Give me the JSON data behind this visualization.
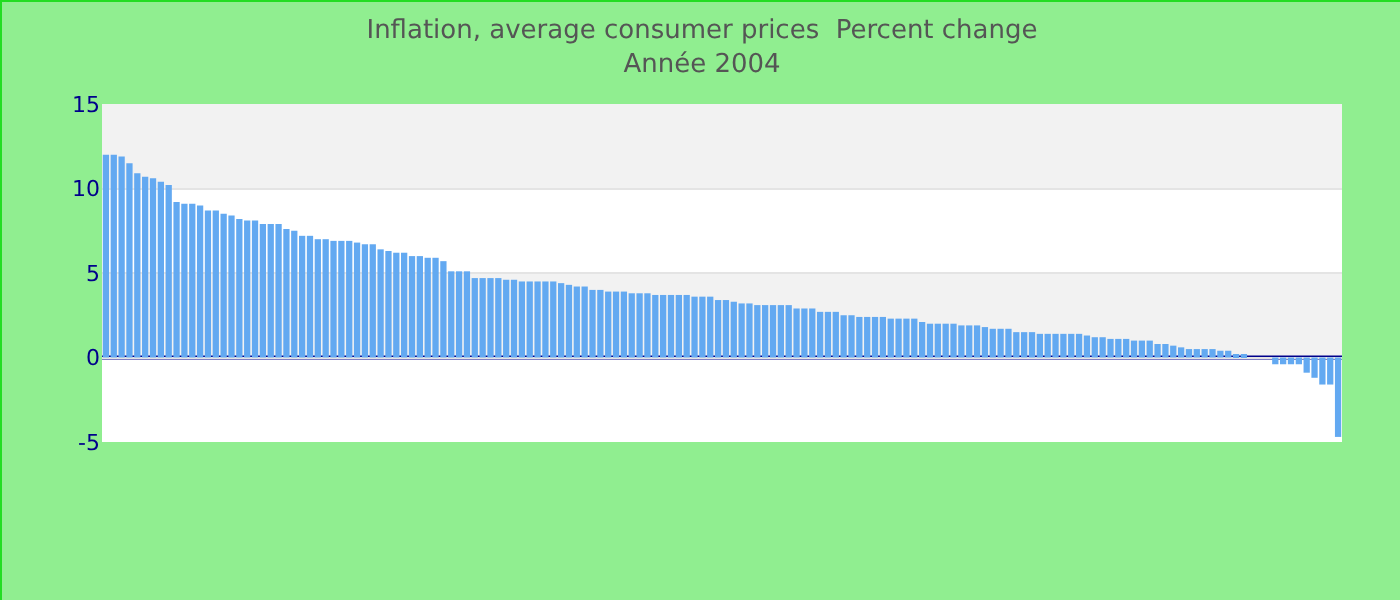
{
  "chart_data": {
    "type": "bar",
    "title": "Inflation, average consumer prices  Percent change",
    "subtitle": "Année 2004",
    "categories": [
      null,
      null,
      null,
      null,
      null,
      null,
      null,
      null,
      null,
      null,
      null,
      null,
      null,
      null,
      null,
      null,
      null,
      null,
      null,
      null,
      null,
      null,
      null,
      null,
      null,
      null,
      null,
      null,
      null,
      null,
      null,
      null,
      null,
      null,
      null,
      null,
      null,
      null,
      null,
      null,
      null,
      null,
      null,
      null,
      null,
      null,
      null,
      null,
      null,
      null,
      null,
      null,
      null,
      null,
      null,
      null,
      null,
      null,
      null,
      null,
      null,
      null,
      null,
      null,
      null,
      null,
      null,
      null,
      null,
      null,
      null,
      null,
      null,
      null,
      null,
      null,
      null,
      null,
      null,
      null,
      null,
      null,
      null,
      null,
      null,
      null,
      null,
      null,
      null,
      null,
      null,
      null,
      null,
      null,
      null,
      null,
      null,
      null,
      null,
      null,
      null,
      null,
      null,
      null,
      null,
      null,
      null,
      null,
      null,
      null,
      null,
      null,
      null,
      null,
      null,
      null,
      null,
      null,
      null,
      null,
      null,
      null,
      null,
      null,
      null,
      null,
      null,
      null,
      null,
      null,
      null,
      null,
      null,
      null,
      null,
      null,
      null,
      null,
      null,
      null,
      null,
      null,
      null,
      null,
      null,
      null,
      null,
      null,
      null,
      null,
      null,
      null,
      null,
      null,
      null,
      null,
      null,
      null
    ],
    "values": [
      12.0,
      12.0,
      11.9,
      11.5,
      10.9,
      10.7,
      10.6,
      10.4,
      10.2,
      9.2,
      9.1,
      9.1,
      9.0,
      8.7,
      8.7,
      8.5,
      8.4,
      8.2,
      8.1,
      8.1,
      7.9,
      7.9,
      7.9,
      7.6,
      7.5,
      7.2,
      7.2,
      7.0,
      7.0,
      6.9,
      6.9,
      6.9,
      6.8,
      6.7,
      6.7,
      6.4,
      6.3,
      6.2,
      6.2,
      6.0,
      6.0,
      5.9,
      5.9,
      5.7,
      5.1,
      5.1,
      5.1,
      4.7,
      4.7,
      4.7,
      4.7,
      4.6,
      4.6,
      4.5,
      4.5,
      4.5,
      4.5,
      4.5,
      4.4,
      4.3,
      4.2,
      4.2,
      4.0,
      4.0,
      3.9,
      3.9,
      3.9,
      3.8,
      3.8,
      3.8,
      3.7,
      3.7,
      3.7,
      3.7,
      3.7,
      3.6,
      3.6,
      3.6,
      3.4,
      3.4,
      3.3,
      3.2,
      3.2,
      3.1,
      3.1,
      3.1,
      3.1,
      3.1,
      2.9,
      2.9,
      2.9,
      2.7,
      2.7,
      2.7,
      2.5,
      2.5,
      2.4,
      2.4,
      2.4,
      2.4,
      2.3,
      2.3,
      2.3,
      2.3,
      2.1,
      2.0,
      2.0,
      2.0,
      2.0,
      1.9,
      1.9,
      1.9,
      1.8,
      1.7,
      1.7,
      1.7,
      1.5,
      1.5,
      1.5,
      1.4,
      1.4,
      1.4,
      1.4,
      1.4,
      1.4,
      1.3,
      1.2,
      1.2,
      1.1,
      1.1,
      1.1,
      1.0,
      1.0,
      1.0,
      0.8,
      0.8,
      0.7,
      0.6,
      0.5,
      0.5,
      0.5,
      0.5,
      0.4,
      0.4,
      0.2,
      0.1,
      null,
      null,
      null,
      -0.4,
      -0.4,
      -0.4,
      -0.4,
      -0.9,
      -1.2,
      -1.6,
      -1.6,
      -4.7
    ],
    "color": "#63a9f1",
    "ylim": [
      -5,
      15
    ],
    "yticks": [
      -5,
      0,
      5,
      10,
      15
    ],
    "grid": true,
    "ref_lines": [
      {
        "axis": "y",
        "value": 0,
        "color": "#00008b"
      }
    ]
  }
}
